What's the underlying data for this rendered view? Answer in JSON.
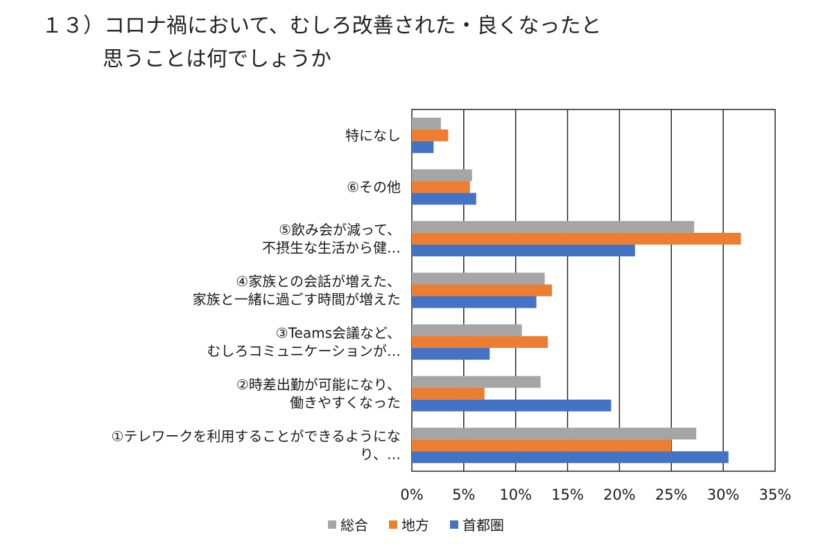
{
  "title": {
    "line1": "１３）コロナ禍において、むしろ改善された・良くなったと",
    "line2": "思うことは何でしょうか"
  },
  "chart_data": {
    "type": "bar",
    "orientation": "horizontal",
    "categories": [
      [
        "特になし"
      ],
      [
        "⑥その他"
      ],
      [
        "⑤飲み会が減って、",
        "不摂生な生活から健…"
      ],
      [
        "④家族との会話が増えた、",
        "家族と一緒に過ごす時間が増えた"
      ],
      [
        "③Teams会議など、",
        "むしろコミュニケーションが…"
      ],
      [
        "②時差出勤が可能になり、",
        "働きやすくなった"
      ],
      [
        "①テレワークを利用することができるようにな",
        "り、…"
      ]
    ],
    "series": [
      {
        "name": "総合",
        "color": "#a5a5a5",
        "values": [
          2.8,
          5.8,
          27.2,
          12.8,
          10.6,
          12.4,
          27.4
        ]
      },
      {
        "name": "地方",
        "color": "#ed7d31",
        "values": [
          3.5,
          5.6,
          31.7,
          13.5,
          13.1,
          7.0,
          25.0
        ]
      },
      {
        "name": "首都圏",
        "color": "#4472c4",
        "values": [
          2.1,
          6.2,
          21.5,
          12.0,
          7.5,
          19.2,
          30.5
        ]
      }
    ],
    "x_ticks": [
      "0%",
      "5%",
      "10%",
      "15%",
      "20%",
      "25%",
      "30%",
      "35%"
    ],
    "xlim": [
      0,
      35
    ],
    "grid": true,
    "legend_position": "bottom"
  }
}
